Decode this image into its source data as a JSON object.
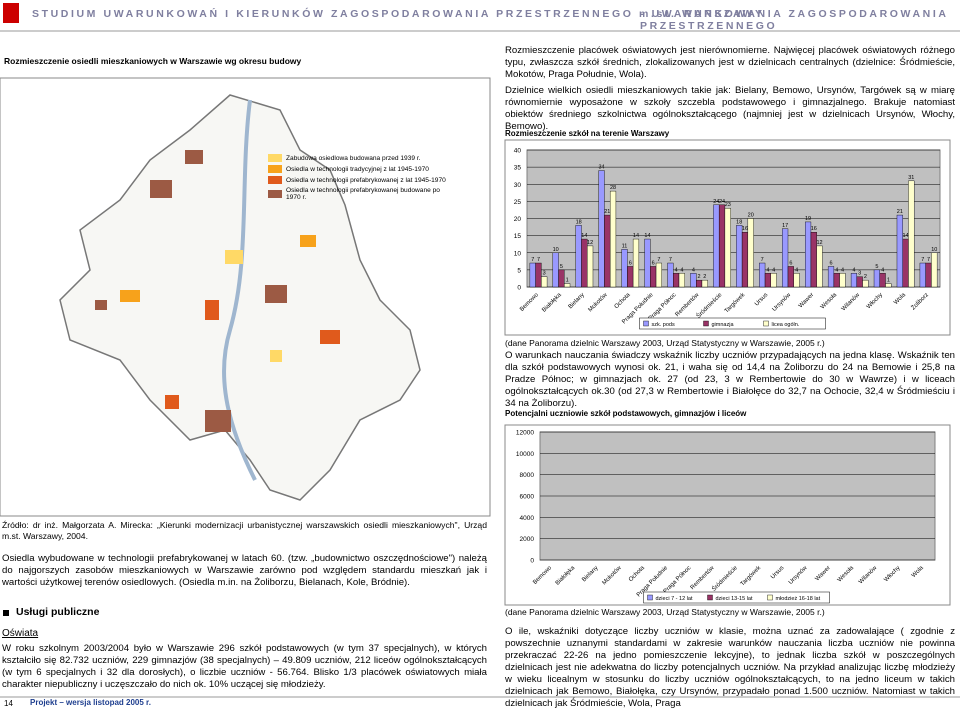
{
  "header": {
    "title": "STUDIUM UWARUNKOWAŃ I KIERUNKÓW ZAGOSPODAROWANIA PRZESTRZENNEGO m.st. WARSZAWY",
    "section": "- UWARUNKOWANIA ZAGOSPODAROWANIA PRZESTRZENNEGO"
  },
  "left": {
    "map_title": "Rozmieszczenie osiedli mieszkaniowych w Warszawie wg okresu budowy",
    "map_legend": [
      {
        "label": "Zabudowa osiedlowa budowana przed 1939 r.",
        "color": "#ffd966"
      },
      {
        "label": "Osiedla w technologii tradycyjnej z lat 1945-1970",
        "color": "#f7a21b"
      },
      {
        "label": "Osiedla w technologii prefabrykowanej z lat 1945-1970",
        "color": "#e05a1c"
      },
      {
        "label": "Osiedla w technologii prefabrykowanej budowane po 1970 r.",
        "color": "#9c5a44"
      }
    ],
    "source": "Źródło: dr inż. Małgorzata A. Mirecka: „Kierunki modernizacji urbanistycznej warszawskich osiedli mieszkaniowych\", Urząd m.st. Warszawy, 2004.",
    "paragraph_1": "Osiedla wybudowane w technologii prefabrykowanej w latach 60. (tzw. „budownictwo oszczędnościowe\") należą do najgorszych zasobów mieszkaniowych w Warszawie zarówno pod względem standardu mieszkań jak i wartości użytkowej terenów osiedlowych. (Osiedla m.in. na Żoliborzu, Bielanach, Kole, Bródnie).",
    "heading": "Usługi publiczne",
    "subheading": "Oświata",
    "paragraph_2": "W roku szkolnym 2003/2004 było w Warszawie 296 szkół podstawowych (w tym 37 specjalnych), w których kształciło się 82.732 uczniów, 229 gimnazjów (38 specjalnych) – 49.809 uczniów, 212 liceów ogólnokształcących (w tym 6 specjalnych i 32 dla dorosłych), o liczbie uczniów - 56.764. Blisko 1/3 placówek oświatowych miała charakter niepubliczny i uczęszczało do nich ok. 10% uczącej się młodzieży."
  },
  "right": {
    "paragraph_1": "Rozmieszczenie placówek oświatowych jest nierównomierne. Najwięcej placówek oświatowych różnego typu, zwłaszcza szkół średnich, zlokalizowanych jest w dzielnicach centralnych (dzielnice: Śródmieście, Mokotów, Praga Południe, Wola).",
    "paragraph_2": "Dzielnice wielkich osiedli mieszkaniowych takie jak: Bielany, Bemowo, Ursynów, Targówek są w miarę równomiernie wyposażone w szkoły szczebla podstawowego i gimnazjalnego. Brakuje natomiast obiektów średniego szkolnictwa ogólnokształcącego (najmniej jest w dzielnicach Ursynów, Włochy, Bemowo).",
    "chart_1": {
      "type": "bar",
      "title": "Rozmieszczenie szkół na terenie Warszawy",
      "categories": [
        "Bemowo",
        "Białołęka",
        "Bielany",
        "Mokotów",
        "Ochota",
        "Praga Południe",
        "Praga Północ",
        "Rembertów",
        "Śródmieście",
        "Targówek",
        "Ursus",
        "Ursynów",
        "Wawer",
        "Wesoła",
        "Wilanów",
        "Włochy",
        "Wola",
        "Żoliborz"
      ],
      "series": [
        {
          "name": "szk. pods",
          "color": "#9999ff",
          "values": [
            7,
            10,
            18,
            34,
            11,
            14,
            7,
            4,
            24,
            18,
            7,
            17,
            19,
            6,
            4,
            5,
            21,
            7
          ]
        },
        {
          "name": "gimnazja",
          "color": "#993366",
          "values": [
            7,
            5,
            14,
            21,
            6,
            6,
            4,
            2,
            24,
            16,
            4,
            6,
            16,
            4,
            3,
            4,
            14,
            7
          ]
        },
        {
          "name": "licea ogóln.",
          "color": "#ffffcc",
          "values": [
            3,
            1,
            12,
            28,
            14,
            7,
            4,
            2,
            23,
            20,
            4,
            4,
            12,
            4,
            2,
            1,
            31,
            10
          ]
        }
      ],
      "ylim": [
        0,
        40
      ],
      "yticks": [
        0,
        5,
        10,
        15,
        20,
        25,
        30,
        35,
        40
      ],
      "grid": true
    },
    "source_1": "(dane Panorama dzielnic Warszawy 2003, Urząd Statystyczny w Warszawie, 2005 r.)",
    "paragraph_3": "O warunkach nauczania świadczy wskaźnik liczby uczniów przypadających na jedna klasę. Wskaźnik ten dla szkół podstawowych wynosi ok. 21, i waha się od 14,4 na Żoliborzu do 24 na Bemowie i 25,8 na Pradze Północ; w gimnazjach ok. 27 (od 23, 3 w Rembertowie do 30 w Wawrze) i w liceach ogólnokształcących ok.30 (od 27,3 w Rembertowie i Białołęce do 32,7 na Ochocie, 32,4 w Śródmieściu i 34 na Żoliborzu).",
    "chart_2": {
      "type": "bar",
      "title": "Potencjalni uczniowie szkół podstawowych, gimnazjów i liceów",
      "categories": [
        "Bemowo",
        "Białołęka",
        "Bielany",
        "Mokotów",
        "Ochota",
        "Praga Południe",
        "Praga Północ",
        "Rembertów",
        "Śródmieście",
        "Targówek",
        "Ursus",
        "Ursynów",
        "Wawer",
        "Wesoła",
        "Wilanów",
        "Włochy",
        "Wola"
      ],
      "series": [
        {
          "name": "dzieci 7 - 12 lat",
          "color": "#9999ff"
        },
        {
          "name": "dzieci 13-15 lat",
          "color": "#993366"
        },
        {
          "name": "młodzież 16-18 lat",
          "color": "#ffffcc"
        }
      ],
      "ylim": [
        0,
        12000
      ],
      "yticks": [
        0,
        2000,
        4000,
        6000,
        8000,
        10000,
        12000
      ],
      "grid": true
    },
    "source_2": "(dane Panorama dzielnic Warszawy 2003, Urząd Statystyczny w Warszawie, 2005 r.)",
    "paragraph_4": "O ile, wskaźniki dotyczące liczby uczniów w klasie, można uznać za zadowalające ( zgodnie z powszechnie uznanymi standardami w zakresie warunków nauczania liczba uczniów nie powinna przekraczać 22-26 na jedno pomieszczenie lekcyjne), to jednak liczba szkół w poszczególnych dzielnicach jest nie adekwatna do liczby potencjalnych uczniów. Na przykład analizując liczbę młodzieży w wieku licealnym w stosunku do liczby uczniów ogólnokształcących, to na jedno liceum w takich dzielnicach jak Bemowo, Białołęka, czy Ursynów, przypadało ponad 1.500 uczniów. Natomiast w takich dzielnicach jak Śródmieście, Wola, Praga"
  },
  "footer": {
    "page": "14",
    "note": "Projekt – wersja listopad 2005 r."
  }
}
